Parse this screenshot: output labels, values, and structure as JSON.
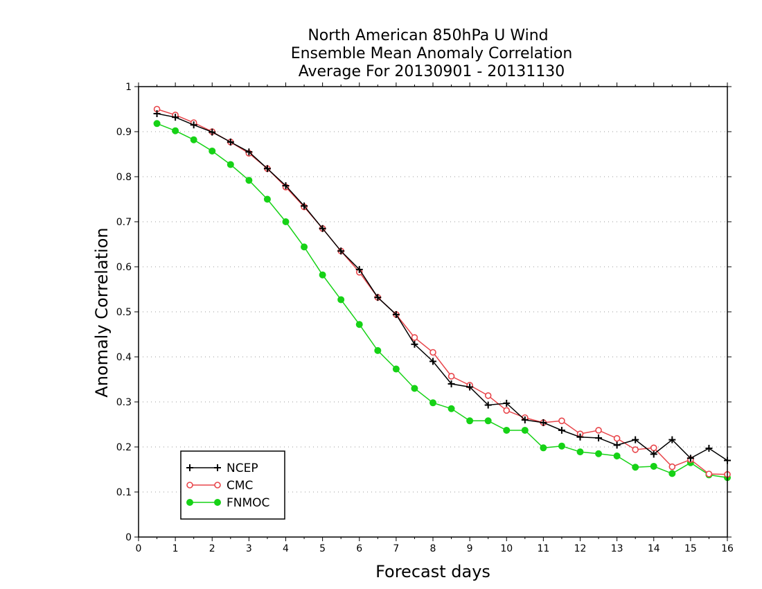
{
  "chart_data": {
    "type": "line",
    "title": [
      "North American 850hPa U Wind",
      "Ensemble Mean Anomaly Correlation",
      "Average For 20130901 - 20131130"
    ],
    "xlabel": "Forecast days",
    "ylabel": "Anomaly Correlation",
    "xlim": [
      0,
      16
    ],
    "ylim": [
      0,
      1
    ],
    "x_ticks": [
      "0",
      "1",
      "2",
      "3",
      "4",
      "5",
      "6",
      "7",
      "8",
      "9",
      "10",
      "11",
      "12",
      "13",
      "14",
      "15",
      "16"
    ],
    "y_ticks": [
      "0",
      "0.1",
      "0.2",
      "0.3",
      "0.4",
      "0.5",
      "0.6",
      "0.7",
      "0.8",
      "0.9",
      "1"
    ],
    "grid": "horizontal-dotted",
    "legend_position": "bottom-left",
    "x": [
      0.5,
      1,
      1.5,
      2,
      2.5,
      3,
      3.5,
      4,
      4.5,
      5,
      5.5,
      6,
      6.5,
      7,
      7.5,
      8,
      8.5,
      9,
      9.5,
      10,
      10.5,
      11,
      11.5,
      12,
      12.5,
      13,
      13.5,
      14,
      14.5,
      15,
      15.5,
      16
    ],
    "series": [
      {
        "name": "NCEP",
        "color": "#000000",
        "marker": "plus",
        "values": [
          0.94,
          0.932,
          0.915,
          0.899,
          0.877,
          0.855,
          0.818,
          0.78,
          0.735,
          0.685,
          0.635,
          0.594,
          0.532,
          0.494,
          0.428,
          0.39,
          0.34,
          0.333,
          0.293,
          0.297,
          0.26,
          0.254,
          0.237,
          0.222,
          0.22,
          0.204,
          0.216,
          0.184,
          0.216,
          0.175,
          0.197,
          0.17
        ]
      },
      {
        "name": "CMC",
        "color": "#e8454a",
        "marker": "open-circle",
        "values": [
          0.95,
          0.937,
          0.92,
          0.9,
          0.877,
          0.852,
          0.818,
          0.777,
          0.733,
          0.685,
          0.635,
          0.588,
          0.532,
          0.494,
          0.443,
          0.41,
          0.357,
          0.337,
          0.314,
          0.281,
          0.265,
          0.254,
          0.258,
          0.229,
          0.237,
          0.219,
          0.194,
          0.198,
          0.156,
          0.172,
          0.14,
          0.139
        ]
      },
      {
        "name": "FNMOC",
        "color": "#16d216",
        "marker": "filled-circle",
        "values": [
          0.918,
          0.902,
          0.882,
          0.857,
          0.827,
          0.792,
          0.75,
          0.7,
          0.644,
          0.582,
          0.527,
          0.472,
          0.414,
          0.373,
          0.33,
          0.298,
          0.285,
          0.258,
          0.258,
          0.237,
          0.237,
          0.198,
          0.202,
          0.189,
          0.185,
          0.18,
          0.155,
          0.157,
          0.141,
          0.165,
          0.138,
          0.132
        ]
      }
    ]
  }
}
